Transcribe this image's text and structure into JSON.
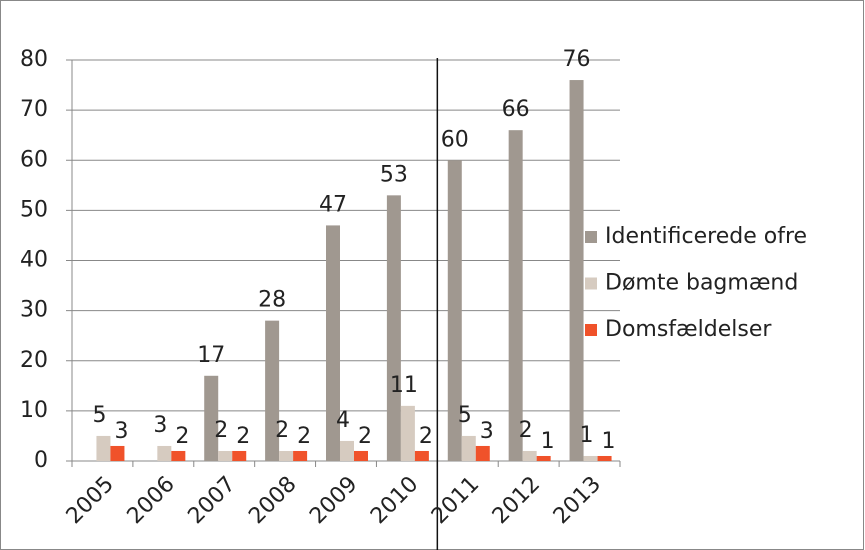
{
  "chart_data": {
    "type": "bar",
    "categories": [
      "2005",
      "2006",
      "2007",
      "2008",
      "2009",
      "2010",
      "2011",
      "2012",
      "2013"
    ],
    "series": [
      {
        "name": "Identificerede ofre",
        "color": "#a09890",
        "values": [
          null,
          null,
          17,
          28,
          47,
          53,
          60,
          66,
          76
        ]
      },
      {
        "name": "Dømte bagmænd",
        "color": "#d6cbc0",
        "values": [
          5,
          3,
          2,
          2,
          4,
          11,
          5,
          2,
          1
        ]
      },
      {
        "name": "Domsfældelser",
        "color": "#f0522a",
        "values": [
          3,
          2,
          2,
          2,
          2,
          2,
          3,
          1,
          1
        ]
      }
    ],
    "ylim": [
      0,
      80
    ],
    "yticks": [
      0,
      10,
      20,
      30,
      40,
      50,
      60,
      70,
      80
    ],
    "grid": true,
    "legend": "right"
  }
}
